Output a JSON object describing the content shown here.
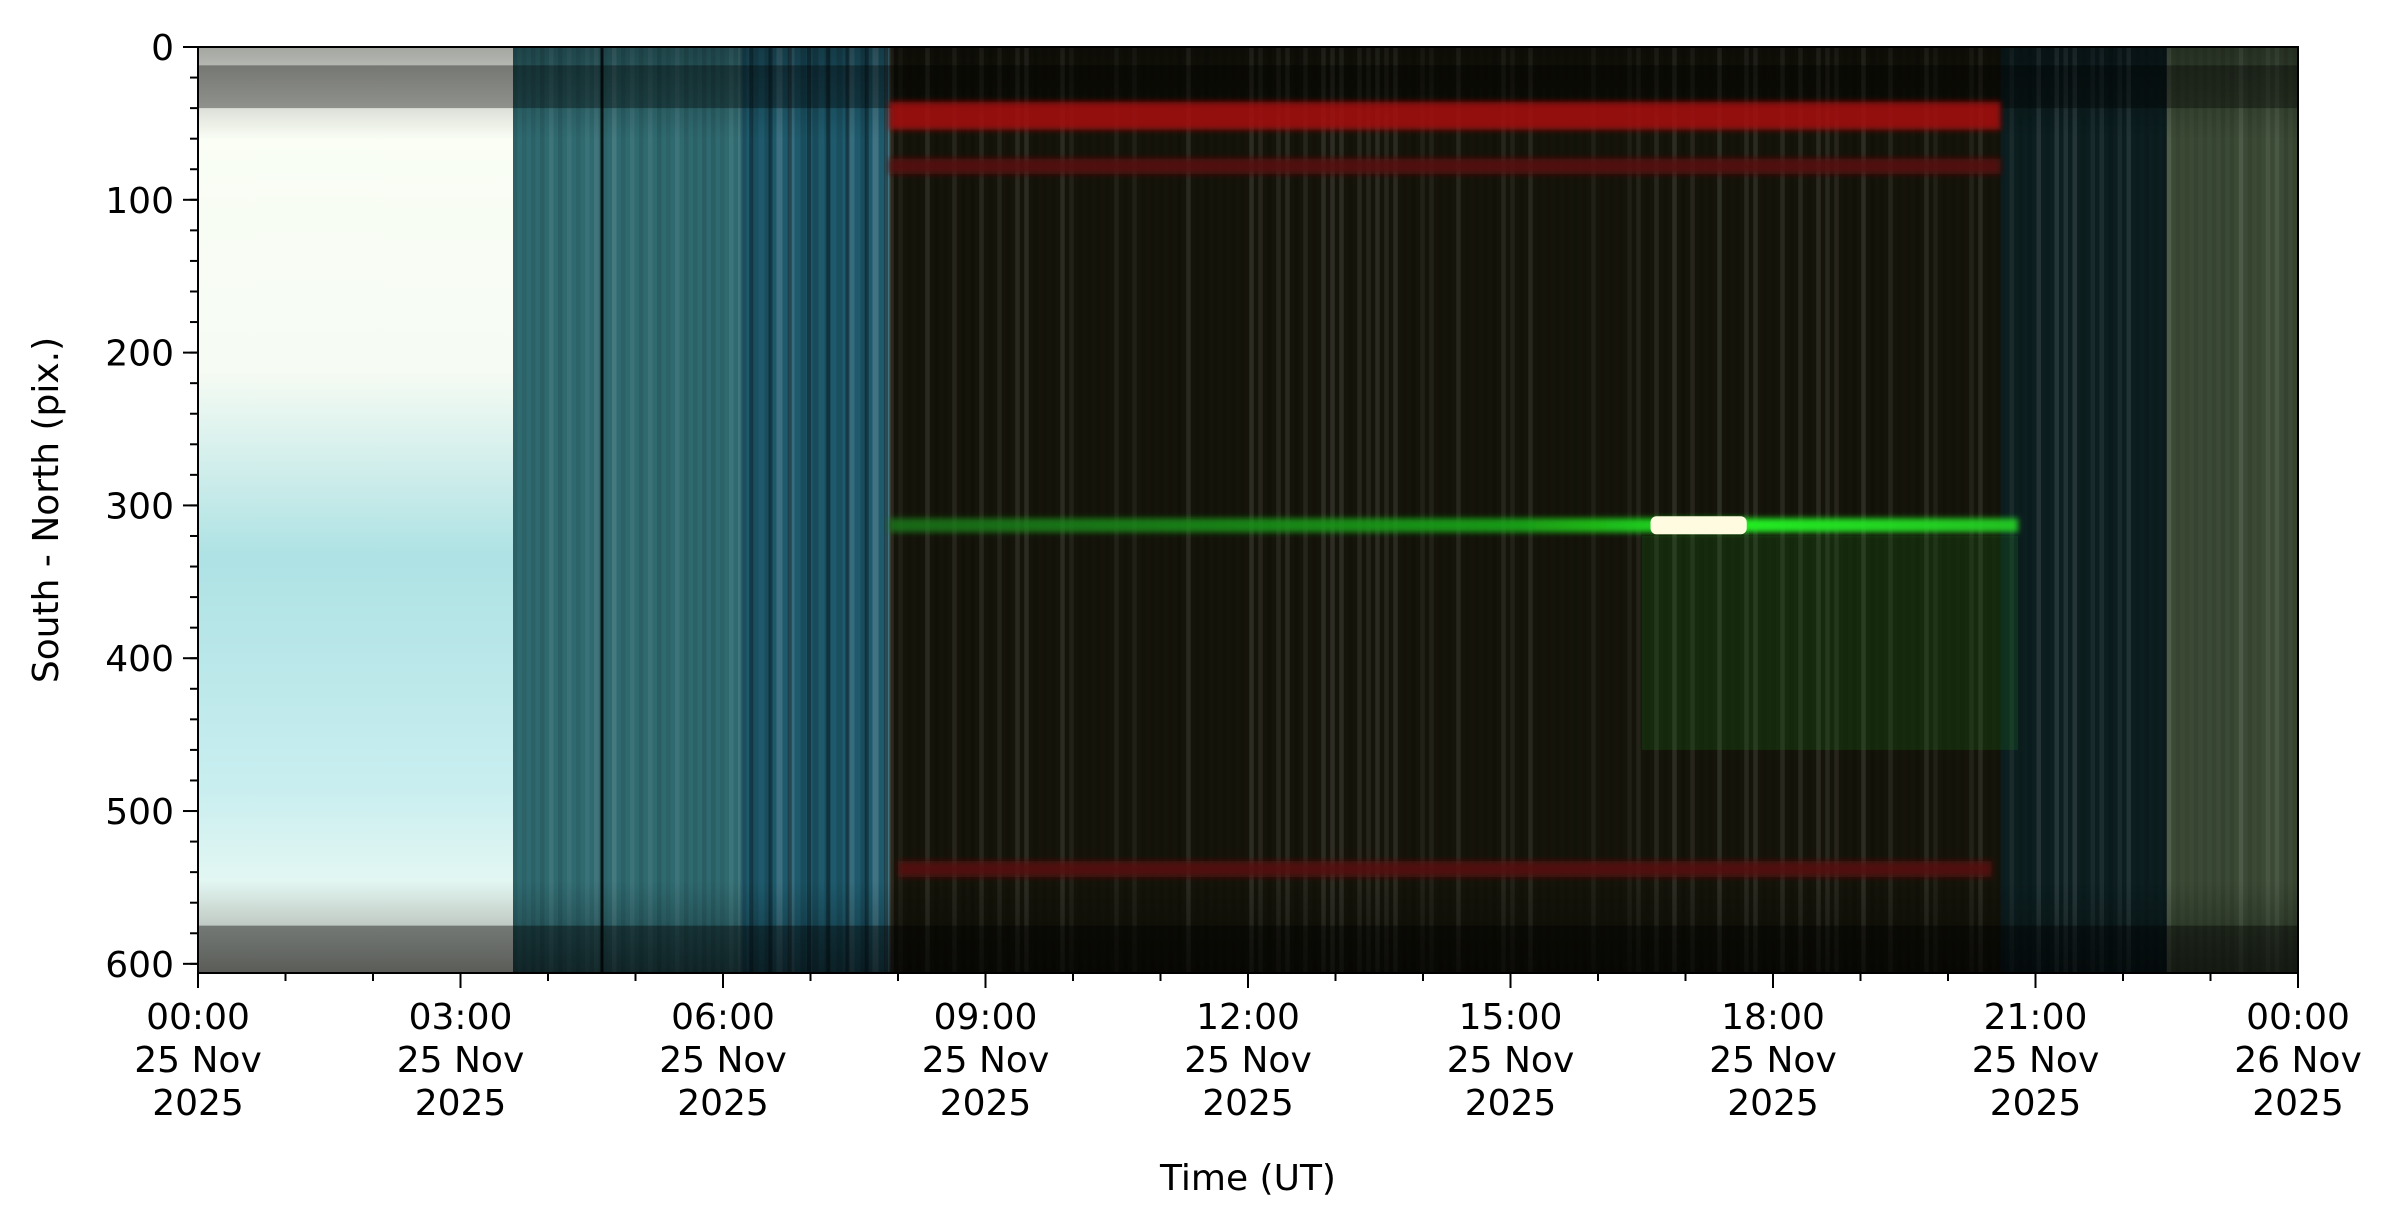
{
  "chart_data": {
    "type": "heatmap",
    "title": "",
    "xlabel": "Time (UT)",
    "ylabel": "South - North (pix.)",
    "x_axis": {
      "range": [
        "2025-11-25T00:00",
        "2025-11-26T00:00"
      ],
      "major_ticks": [
        {
          "hours": 0,
          "time": "00:00",
          "date": "25 Nov",
          "year": "2025"
        },
        {
          "hours": 3,
          "time": "03:00",
          "date": "25 Nov",
          "year": "2025"
        },
        {
          "hours": 6,
          "time": "06:00",
          "date": "25 Nov",
          "year": "2025"
        },
        {
          "hours": 9,
          "time": "09:00",
          "date": "25 Nov",
          "year": "2025"
        },
        {
          "hours": 12,
          "time": "12:00",
          "date": "25 Nov",
          "year": "2025"
        },
        {
          "hours": 15,
          "time": "15:00",
          "date": "25 Nov",
          "year": "2025"
        },
        {
          "hours": 18,
          "time": "18:00",
          "date": "25 Nov",
          "year": "2025"
        },
        {
          "hours": 21,
          "time": "21:00",
          "date": "25 Nov",
          "year": "2025"
        },
        {
          "hours": 24,
          "time": "00:00",
          "date": "26 Nov",
          "year": "2025"
        }
      ],
      "minor_tick_interval_hours": 1
    },
    "y_axis": {
      "range": [
        0,
        606
      ],
      "inverted": true,
      "major_ticks": [
        0,
        100,
        200,
        300,
        400,
        500,
        600
      ],
      "minor_tick_interval": 20
    },
    "grid": false,
    "legend": "none",
    "image_segments": [
      {
        "start_h": 0.0,
        "end_h": 3.6,
        "color": "#ddf2f0",
        "desc": "saturated white/cyan"
      },
      {
        "start_h": 3.6,
        "end_h": 6.2,
        "color": "#2f6a70",
        "desc": "teal"
      },
      {
        "start_h": 6.2,
        "end_h": 7.9,
        "color": "#1e5a6c",
        "desc": "teal/blue banded"
      },
      {
        "start_h": 7.9,
        "end_h": 20.6,
        "color": "#15140a",
        "desc": "dark olive"
      },
      {
        "start_h": 20.6,
        "end_h": 22.5,
        "color": "#0c1e20",
        "desc": "dark teal"
      },
      {
        "start_h": 22.5,
        "end_h": 24.0,
        "color": "#3b4a35",
        "desc": "dark green"
      }
    ],
    "features": [
      {
        "kind": "horizontal-band",
        "color": "red",
        "y": 45,
        "start_h": 7.9,
        "end_h": 20.6
      },
      {
        "kind": "horizontal-band",
        "color": "red",
        "y": 78,
        "start_h": 7.9,
        "end_h": 20.6
      },
      {
        "kind": "horizontal-band",
        "color": "red",
        "y": 538,
        "start_h": 8.0,
        "end_h": 20.5
      },
      {
        "kind": "horizontal-line",
        "color": "green",
        "y": 313,
        "start_h": 7.9,
        "end_h": 20.8
      },
      {
        "kind": "bright-patch",
        "color": "white",
        "y": 313,
        "start_h": 16.6,
        "end_h": 17.7
      }
    ]
  }
}
